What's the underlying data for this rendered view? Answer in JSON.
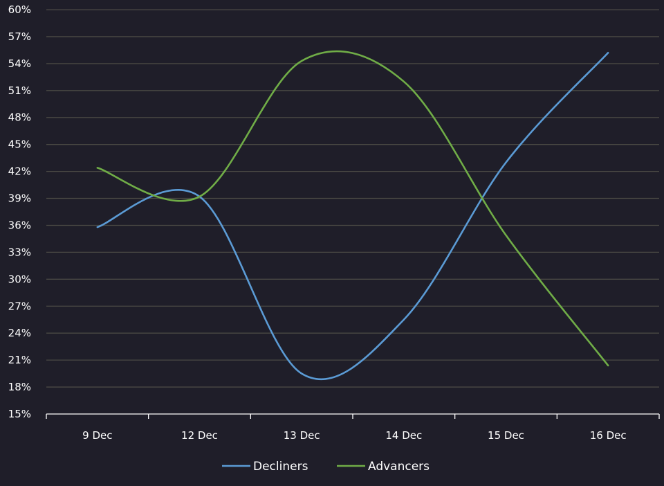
{
  "chart_data": {
    "type": "line",
    "title": "",
    "xlabel": "",
    "ylabel": "",
    "categories": [
      "9 Dec",
      "12 Dec",
      "13 Dec",
      "14 Dec",
      "15 Dec",
      "16 Dec"
    ],
    "ylim": [
      15,
      60
    ],
    "yticks": [
      "15%",
      "18%",
      "21%",
      "24%",
      "27%",
      "30%",
      "33%",
      "36%",
      "39%",
      "42%",
      "45%",
      "48%",
      "51%",
      "54%",
      "57%",
      "60%"
    ],
    "grid": true,
    "legend_position": "bottom",
    "series": [
      {
        "name": "Decliners",
        "color": "#5b9bd5",
        "values": [
          35.8,
          39.2,
          19.5,
          25.5,
          43.0,
          55.2
        ]
      },
      {
        "name": "Advancers",
        "color": "#70ad47",
        "values": [
          42.4,
          39.2,
          54.3,
          52.0,
          34.9,
          20.4
        ]
      }
    ]
  }
}
